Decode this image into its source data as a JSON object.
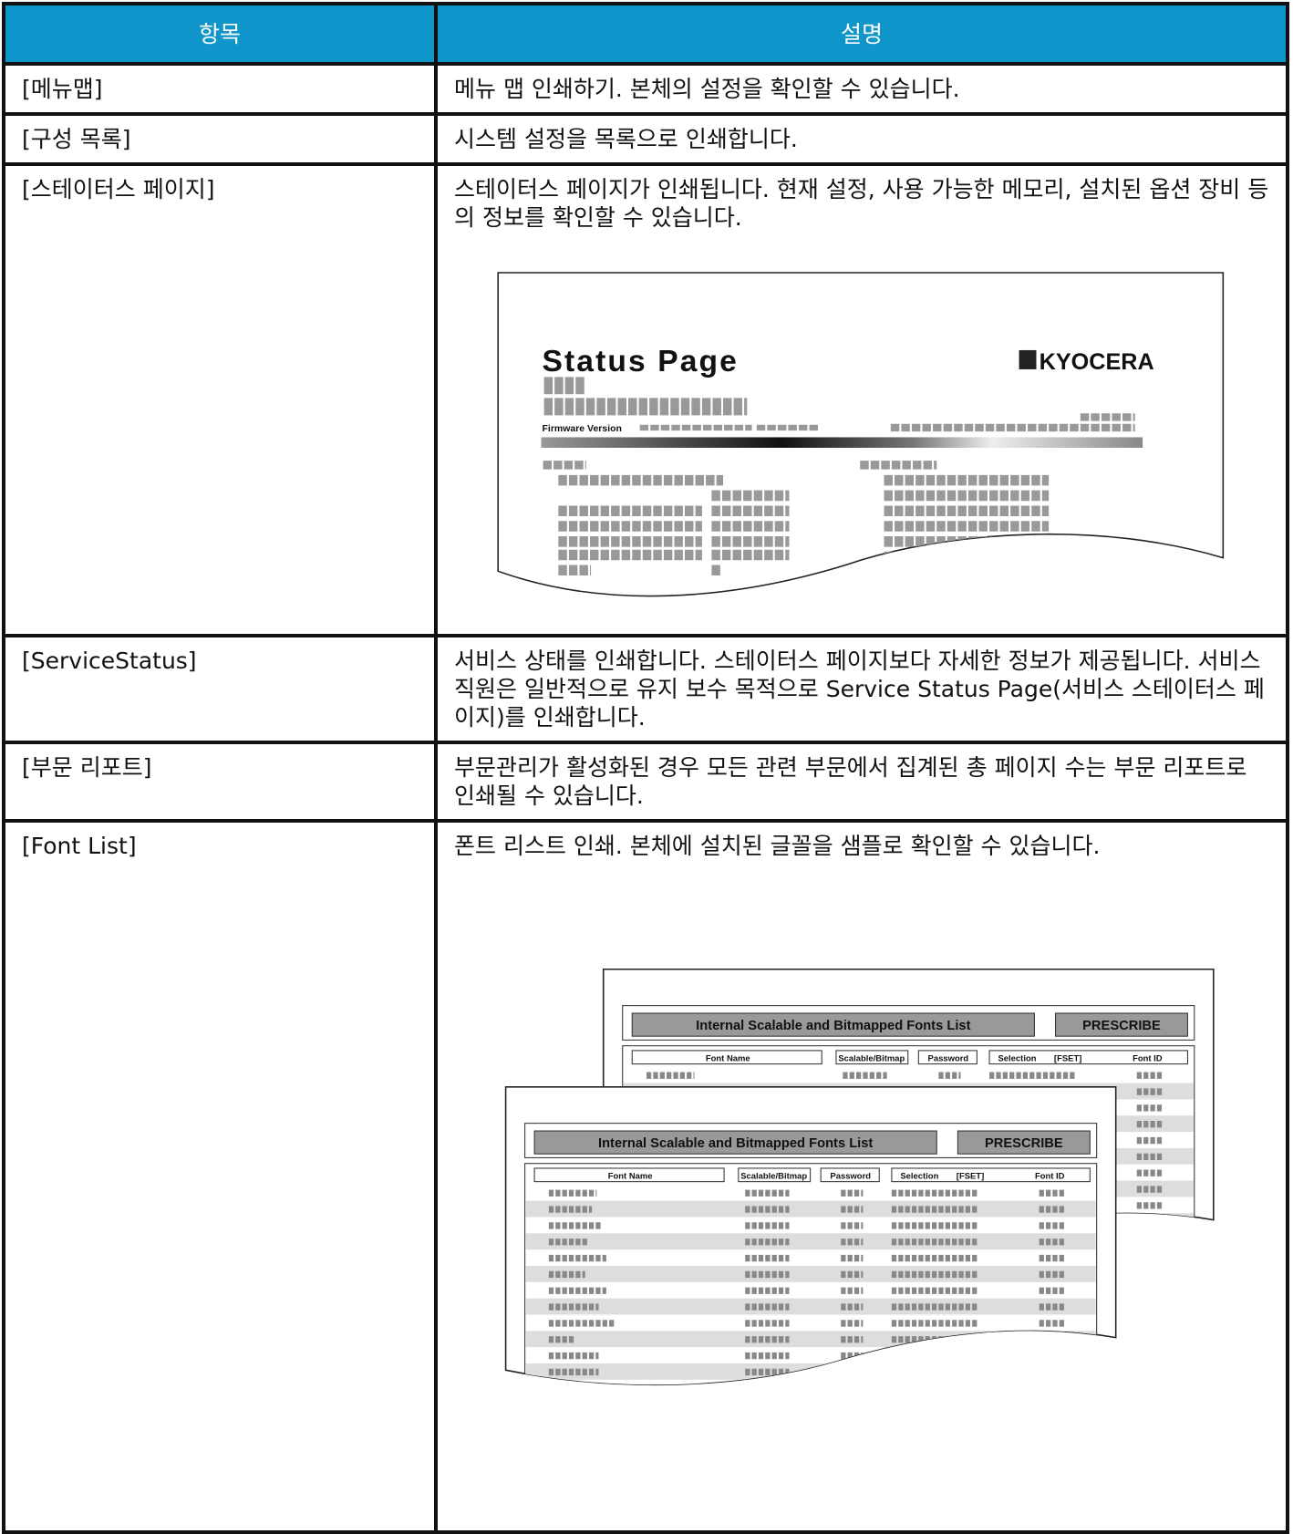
{
  "table": {
    "header": [
      "항목",
      "설명"
    ],
    "rows": [
      [
        "[메뉴맵]",
        "메뉴 맵 인쇄하기. 본체의 설정을 확인할 수 있습니다."
      ],
      [
        "[구성 목록]",
        "시스템 설정을 목록으로 인쇄합니다."
      ],
      [
        "[스테이터스 페이지]",
        "스테이터스 페이지가 인쇄됩니다. 현재 설정, 사용 가능한 메모리, 설치된 옵션 장비 등의 정보를 확인할 수 있습니다."
      ],
      [
        "[ServiceStatus]",
        "서비스 상태를 인쇄합니다. 스테이터스 페이지보다 자세한 정보가 제공됩니다. 서비스 직원은 일반적으로 유지 보수 목적으로 Service Status Page(서비스 스테이터스 페이지)를 인쇄합니다."
      ],
      [
        "[부문 리포트]",
        "부문관리가 활성화된 경우 모든 관련 부문에서 집계된 총 페이지 수는 부문 리포트로 인쇄될 수 있습니다."
      ],
      [
        "[Font List]",
        "폰트 리스트 인쇄. 본체에 설치된 글꼴을 샘플로 확인할 수 있습니다."
      ]
    ]
  },
  "status_page": {
    "title": "Status Page",
    "logo": "KYOCERA",
    "firmware_label": "Firmware Version"
  },
  "font_list": {
    "title": "Internal Scalable and Bitmapped Fonts List",
    "badge": "PRESCRIBE",
    "columns": [
      "Font Name",
      "Scalable/Bitmap",
      "Password",
      "Selection",
      "[FSET]",
      "Font ID"
    ]
  }
}
